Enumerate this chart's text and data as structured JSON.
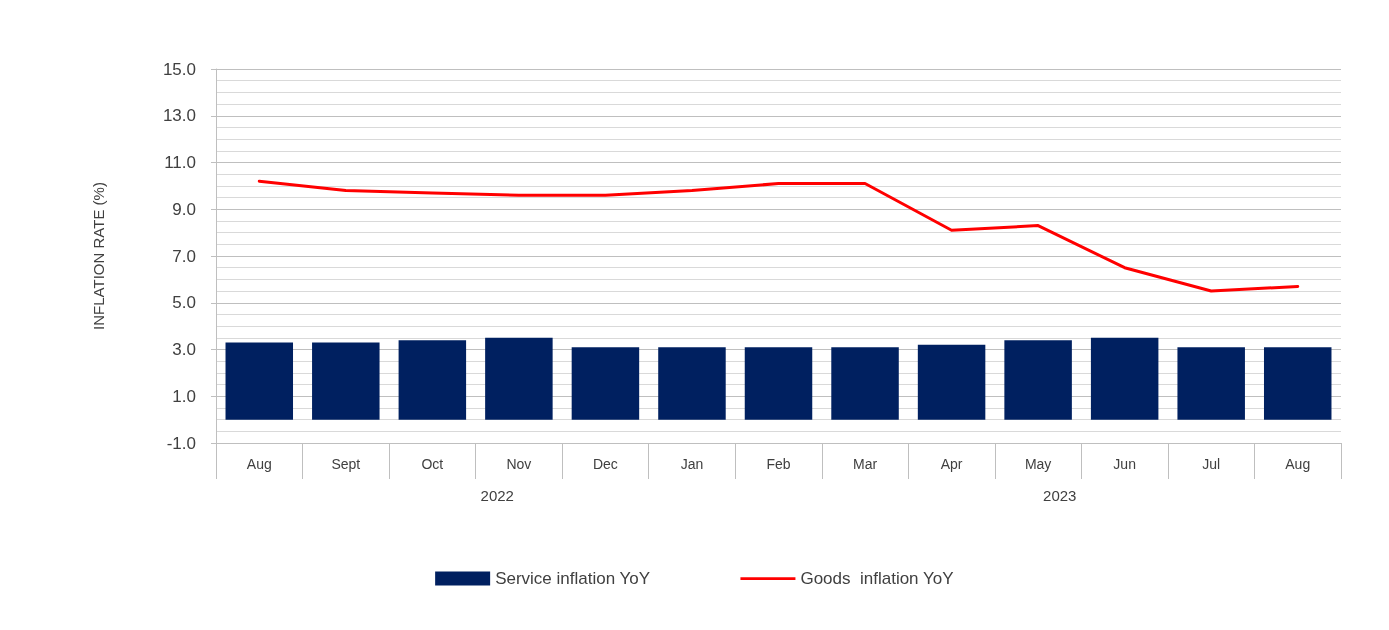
{
  "chart_data": {
    "type": "bar",
    "ylabel": "INFLATION RATE (%)",
    "categories": [
      "Aug",
      "Sept",
      "Oct",
      "Nov",
      "Dec",
      "Jan",
      "Feb",
      "Mar",
      "Apr",
      "May",
      "Jun",
      "Jul",
      "Aug"
    ],
    "series": [
      {
        "name": "Service inflation YoY",
        "color": "#002060",
        "values": [
          3.3,
          3.3,
          3.4,
          3.5,
          3.1,
          3.1,
          3.1,
          3.1,
          3.2,
          3.4,
          3.5,
          3.1,
          3.1
        ]
      },
      {
        "name": "Goods  inflation YoY",
        "type": "line",
        "color": "#ff0000",
        "values": [
          10.2,
          9.8,
          9.7,
          9.6,
          9.6,
          9.8,
          10.1,
          10.1,
          8.1,
          8.3,
          6.5,
          5.5,
          5.7
        ]
      }
    ],
    "ylim": [
      -1,
      15
    ],
    "yticks": [
      {
        "value": -1,
        "label": "-1.0"
      },
      {
        "value": 1,
        "label": "1.0"
      },
      {
        "value": 3,
        "label": "3.0"
      },
      {
        "value": 5,
        "label": "5.0"
      },
      {
        "value": 7,
        "label": "7.0"
      },
      {
        "value": 9,
        "label": "9.0"
      },
      {
        "value": 11,
        "label": "11.0"
      },
      {
        "value": 13,
        "label": "13.0"
      },
      {
        "value": 15,
        "label": "15.0"
      }
    ],
    "annotations": [
      "2022",
      "2023"
    ],
    "grid": "y",
    "legend": "bottom",
    "marker": "none",
    "line_style": "solid"
  }
}
